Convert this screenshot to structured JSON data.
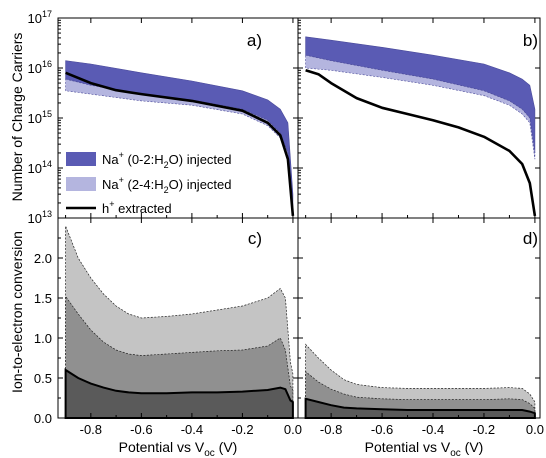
{
  "figure": {
    "ylabel_top": "Number of Charge Carriers",
    "ylabel_bottom": "Ion-to-electron conversion",
    "xlabel": "Potential vs V",
    "xlabel_sub": "oc",
    "xlabel_unit": " (V)",
    "legend": {
      "item1_pre": "Na",
      "item1_sup": "+",
      "item1_post": " (0-2:H",
      "item1_sub": "2",
      "item1_end": "O) injected",
      "item2_pre": "Na",
      "item2_sup": "+",
      "item2_post": " (2-4:H",
      "item2_sub": "2",
      "item2_end": "O) injected",
      "item3_pre": "h",
      "item3_sup": "+",
      "item3_end": " extracted"
    },
    "ytick_top": [
      {
        "base": "10",
        "exp": "13"
      },
      {
        "base": "10",
        "exp": "14"
      },
      {
        "base": "10",
        "exp": "15"
      },
      {
        "base": "10",
        "exp": "16"
      },
      {
        "base": "10",
        "exp": "17"
      }
    ],
    "ytick_bottom": [
      "0.0",
      "0.5",
      "1.0",
      "1.5",
      "2.0"
    ],
    "xticks": [
      "-0.8",
      "-0.6",
      "-0.4",
      "-0.2",
      "0.0"
    ]
  },
  "colors": {
    "na02": "#5a5bb4",
    "na24": "#b4b5df",
    "h": "#000000",
    "conv_light": "#c4c4c4",
    "conv_mid": "#909090",
    "conv_dark": "#5a5a5a"
  },
  "chart_data": [
    {
      "panel": "a)",
      "type": "area",
      "yscale": "log",
      "xlim": [
        -0.93,
        0.02
      ],
      "ylim": [
        10000000000000.0,
        1e+17
      ],
      "series": [
        {
          "name": "Na+ (0-2:H2O) injected",
          "style": "band",
          "x": [
            -0.9,
            -0.8,
            -0.6,
            -0.4,
            -0.2,
            -0.1,
            -0.05,
            -0.02,
            0.0
          ],
          "lower": [
            6000000000000000.0,
            4500000000000000.0,
            3000000000000000.0,
            2300000000000000.0,
            1500000000000000.0,
            900000000000000.0,
            500000000000000.0,
            200000000000000.0,
            15000000000000.0
          ],
          "upper": [
            1.4e+16,
            1.2e+16,
            8000000000000000.0,
            5500000000000000.0,
            3500000000000000.0,
            2300000000000000.0,
            1500000000000000.0,
            800000000000000.0,
            30000000000000.0
          ]
        },
        {
          "name": "Na+ (2-4:H2O) injected",
          "style": "band",
          "x": [
            -0.9,
            -0.8,
            -0.6,
            -0.4,
            -0.2,
            -0.1,
            -0.05,
            -0.02,
            0.0
          ],
          "lower": [
            3500000000000000.0,
            3000000000000000.0,
            2200000000000000.0,
            1800000000000000.0,
            1200000000000000.0,
            700000000000000.0,
            400000000000000.0,
            150000000000000.0,
            12000000000000.0
          ],
          "upper": [
            6000000000000000.0,
            4500000000000000.0,
            3000000000000000.0,
            2300000000000000.0,
            1500000000000000.0,
            900000000000000.0,
            500000000000000.0,
            200000000000000.0,
            15000000000000.0
          ]
        },
        {
          "name": "h+ extracted",
          "style": "line",
          "x": [
            -0.9,
            -0.8,
            -0.7,
            -0.6,
            -0.4,
            -0.2,
            -0.1,
            -0.05,
            -0.02,
            0.0
          ],
          "y": [
            8000000000000000.0,
            5000000000000000.0,
            3600000000000000.0,
            3000000000000000.0,
            2200000000000000.0,
            1400000000000000.0,
            800000000000000.0,
            450000000000000.0,
            150000000000000.0,
            11000000000000.0
          ]
        }
      ]
    },
    {
      "panel": "b)",
      "type": "area",
      "yscale": "log",
      "xlim": [
        -0.93,
        0.02
      ],
      "ylim": [
        10000000000000.0,
        1e+17
      ],
      "series": [
        {
          "name": "Na+ (0-2:H2O) injected",
          "style": "band",
          "x": [
            -0.9,
            -0.8,
            -0.6,
            -0.4,
            -0.2,
            -0.1,
            -0.05,
            -0.02,
            0.0
          ],
          "lower": [
            1.8e+16,
            1.4e+16,
            9000000000000000.0,
            6000000000000000.0,
            3500000000000000.0,
            2200000000000000.0,
            1500000000000000.0,
            1000000000000000.0,
            200000000000000.0
          ],
          "upper": [
            4.2e+16,
            3.6e+16,
            2.6e+16,
            1.8e+16,
            1.2e+16,
            8000000000000000.0,
            6000000000000000.0,
            4500000000000000.0,
            1500000000000000.0
          ]
        },
        {
          "name": "Na+ (2-4:H2O) injected",
          "style": "band",
          "x": [
            -0.9,
            -0.8,
            -0.6,
            -0.4,
            -0.2,
            -0.1,
            -0.05,
            -0.02,
            0.0
          ],
          "lower": [
            1e+16,
            9000000000000000.0,
            6500000000000000.0,
            4500000000000000.0,
            2800000000000000.0,
            1800000000000000.0,
            1200000000000000.0,
            800000000000000.0,
            150000000000000.0
          ],
          "upper": [
            1.8e+16,
            1.4e+16,
            9000000000000000.0,
            6000000000000000.0,
            3500000000000000.0,
            2200000000000000.0,
            1500000000000000.0,
            1000000000000000.0,
            200000000000000.0
          ]
        },
        {
          "name": "h+ extracted",
          "style": "line",
          "x": [
            -0.9,
            -0.85,
            -0.8,
            -0.7,
            -0.6,
            -0.5,
            -0.4,
            -0.3,
            -0.2,
            -0.1,
            -0.05,
            -0.02,
            0.0
          ],
          "y": [
            9000000000000000.0,
            7500000000000000.0,
            5000000000000000.0,
            2500000000000000.0,
            1600000000000000.0,
            1200000000000000.0,
            900000000000000.0,
            650000000000000.0,
            420000000000000.0,
            220000000000000.0,
            120000000000000.0,
            50000000000000.0,
            11000000000000.0
          ]
        }
      ]
    },
    {
      "panel": "c)",
      "type": "area",
      "xlim": [
        -0.93,
        0.02
      ],
      "ylim": [
        0,
        2.5
      ],
      "series": [
        {
          "name": "light",
          "style": "fill",
          "x": [
            -0.9,
            -0.85,
            -0.8,
            -0.75,
            -0.7,
            -0.65,
            -0.6,
            -0.5,
            -0.4,
            -0.3,
            -0.2,
            -0.1,
            -0.05,
            -0.03,
            -0.01,
            0.0
          ],
          "y": [
            2.4,
            2.0,
            1.75,
            1.55,
            1.4,
            1.3,
            1.25,
            1.27,
            1.3,
            1.35,
            1.4,
            1.5,
            1.62,
            1.5,
            0.7,
            0.55
          ]
        },
        {
          "name": "mid",
          "style": "fill",
          "x": [
            -0.9,
            -0.85,
            -0.8,
            -0.75,
            -0.7,
            -0.65,
            -0.6,
            -0.5,
            -0.4,
            -0.3,
            -0.2,
            -0.1,
            -0.05,
            -0.03,
            -0.01,
            0.0
          ],
          "y": [
            1.52,
            1.3,
            1.1,
            0.95,
            0.85,
            0.8,
            0.78,
            0.8,
            0.82,
            0.84,
            0.85,
            0.9,
            1.0,
            0.85,
            0.4,
            0.35
          ]
        },
        {
          "name": "dark",
          "style": "fill",
          "x": [
            -0.9,
            -0.85,
            -0.8,
            -0.75,
            -0.7,
            -0.65,
            -0.6,
            -0.5,
            -0.4,
            -0.3,
            -0.2,
            -0.1,
            -0.05,
            -0.03,
            -0.01,
            0.0
          ],
          "y": [
            0.6,
            0.5,
            0.43,
            0.38,
            0.34,
            0.32,
            0.31,
            0.31,
            0.32,
            0.32,
            0.33,
            0.35,
            0.38,
            0.36,
            0.22,
            0.2
          ]
        }
      ]
    },
    {
      "panel": "d)",
      "type": "area",
      "xlim": [
        -0.93,
        0.02
      ],
      "ylim": [
        0,
        2.5
      ],
      "series": [
        {
          "name": "light",
          "style": "fill",
          "x": [
            -0.9,
            -0.85,
            -0.8,
            -0.75,
            -0.7,
            -0.6,
            -0.5,
            -0.4,
            -0.3,
            -0.2,
            -0.1,
            -0.05,
            -0.02,
            0.0
          ],
          "y": [
            0.92,
            0.75,
            0.6,
            0.48,
            0.42,
            0.38,
            0.37,
            0.37,
            0.37,
            0.37,
            0.38,
            0.37,
            0.3,
            0.2
          ]
        },
        {
          "name": "mid",
          "style": "fill",
          "x": [
            -0.9,
            -0.85,
            -0.8,
            -0.75,
            -0.7,
            -0.6,
            -0.5,
            -0.4,
            -0.3,
            -0.2,
            -0.1,
            -0.05,
            -0.02,
            0.0
          ],
          "y": [
            0.58,
            0.45,
            0.36,
            0.3,
            0.26,
            0.24,
            0.23,
            0.23,
            0.23,
            0.23,
            0.24,
            0.23,
            0.18,
            0.12
          ]
        },
        {
          "name": "dark",
          "style": "fill",
          "x": [
            -0.9,
            -0.85,
            -0.8,
            -0.75,
            -0.7,
            -0.6,
            -0.5,
            -0.4,
            -0.3,
            -0.2,
            -0.1,
            -0.05,
            -0.02,
            0.0
          ],
          "y": [
            0.24,
            0.2,
            0.16,
            0.13,
            0.12,
            0.11,
            0.1,
            0.1,
            0.1,
            0.1,
            0.1,
            0.1,
            0.08,
            0.06
          ]
        }
      ]
    }
  ]
}
